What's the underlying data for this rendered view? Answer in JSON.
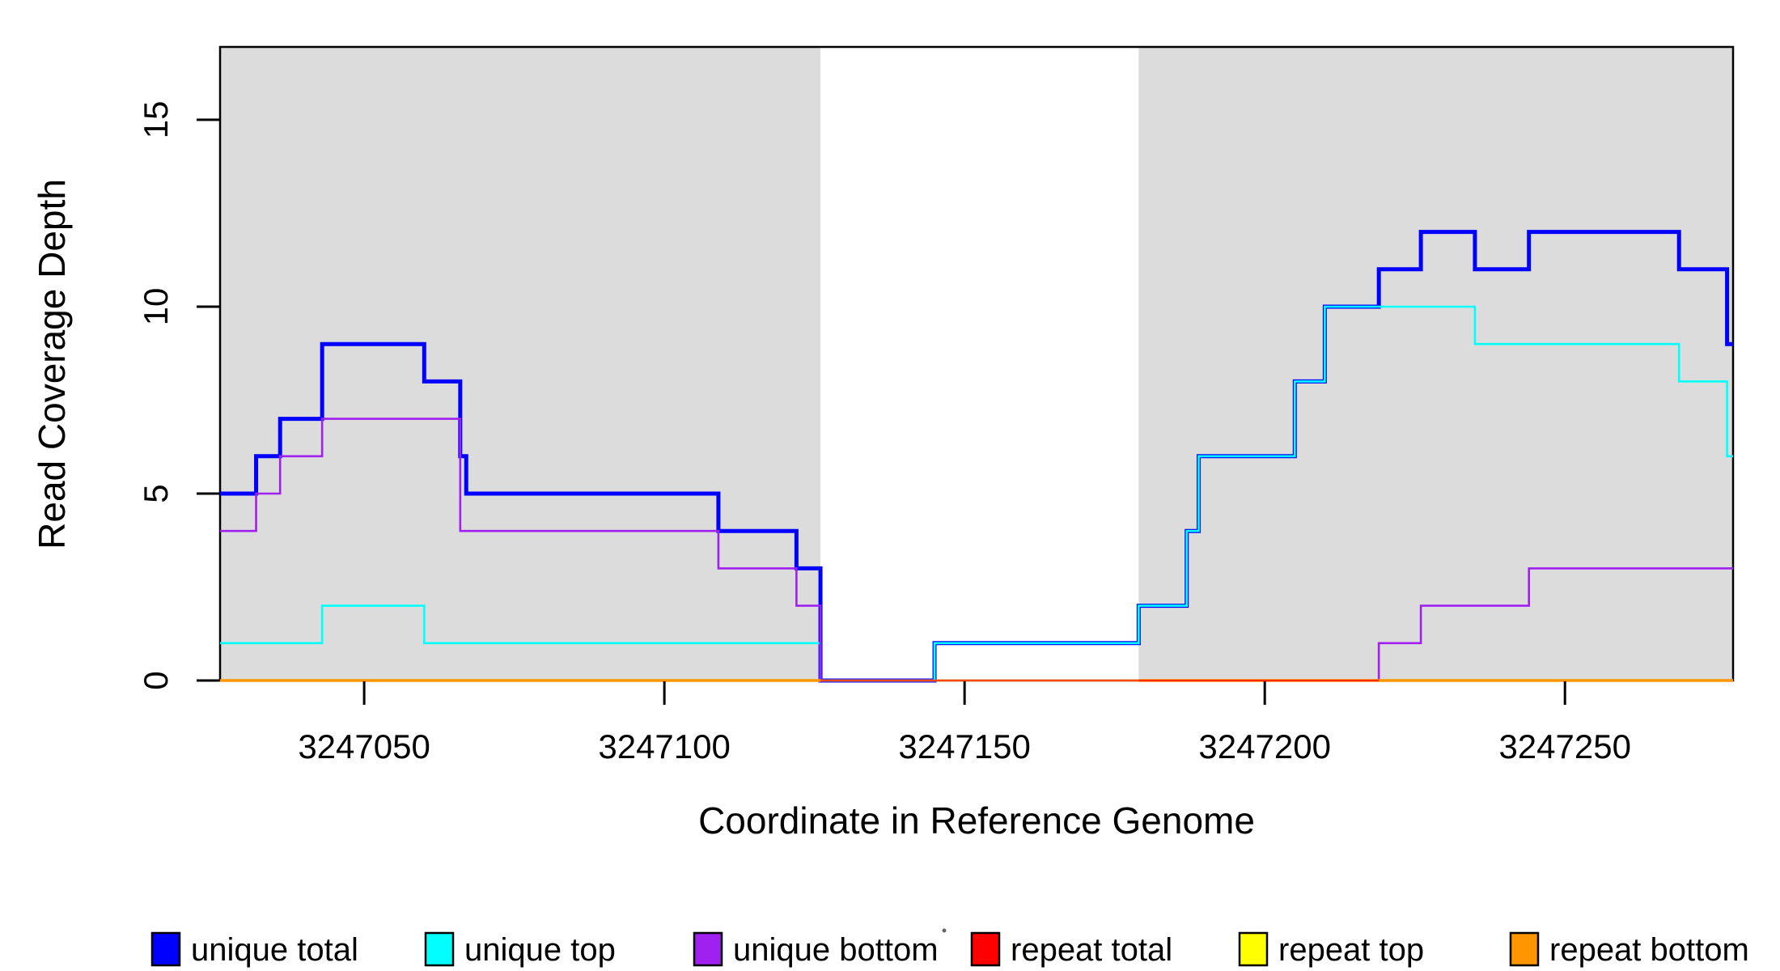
{
  "chart_data": {
    "type": "line",
    "subtype": "step-coverage-plot",
    "title": "",
    "xlabel": "Coordinate in Reference Genome",
    "ylabel": "Read Coverage Depth",
    "x_range": [
      3247026,
      3247278
    ],
    "y_range": [
      0,
      17
    ],
    "x_ticks": [
      3247050,
      3247100,
      3247150,
      3247200,
      3247250
    ],
    "y_ticks": [
      0,
      5,
      10,
      15
    ],
    "grid": false,
    "legend_position": "bottom",
    "shaded_regions": [
      {
        "from": 3247026,
        "to": 3247126,
        "color": "#DCDCDC"
      },
      {
        "from": 3247179,
        "to": 3247278,
        "color": "#DCDCDC"
      }
    ],
    "series": [
      {
        "name": "unique total",
        "color": "#0000FF",
        "line_width": 5,
        "line_opacity": 1,
        "segments": [
          {
            "steps": [
              [
                3247026,
                5
              ],
              [
                3247032,
                6
              ],
              [
                3247036,
                7
              ],
              [
                3247043,
                9
              ],
              [
                3247060,
                8
              ],
              [
                3247066,
                6
              ],
              [
                3247067,
                5
              ],
              [
                3247109,
                4
              ],
              [
                3247122,
                3
              ],
              [
                3247126,
                0
              ],
              [
                3247145,
                1
              ],
              [
                3247179,
                2
              ],
              [
                3247187,
                4
              ],
              [
                3247189,
                6
              ],
              [
                3247205,
                8
              ],
              [
                3247210,
                10
              ],
              [
                3247219,
                11
              ],
              [
                3247226,
                12
              ],
              [
                3247235,
                11
              ],
              [
                3247244,
                12
              ],
              [
                3247269,
                11
              ],
              [
                3247277,
                9
              ]
            ],
            "end": 3247278
          }
        ]
      },
      {
        "name": "unique top",
        "color": "#00FFFF",
        "line_width": 2.6,
        "line_opacity": 1,
        "segments": [
          {
            "steps": [
              [
                3247026,
                1
              ],
              [
                3247043,
                2
              ],
              [
                3247060,
                1
              ],
              [
                3247126,
                0
              ],
              [
                3247145,
                1
              ],
              [
                3247179,
                2
              ],
              [
                3247187,
                4
              ],
              [
                3247189,
                6
              ],
              [
                3247205,
                8
              ],
              [
                3247210,
                10
              ],
              [
                3247235,
                9
              ],
              [
                3247269,
                8
              ],
              [
                3247277,
                6
              ]
            ],
            "end": 3247278
          }
        ]
      },
      {
        "name": "unique bottom",
        "color": "#A020F0",
        "line_width": 2.6,
        "line_opacity": 1,
        "segments": [
          {
            "steps": [
              [
                3247026,
                4
              ],
              [
                3247032,
                5
              ],
              [
                3247036,
                6
              ],
              [
                3247043,
                7
              ],
              [
                3247066,
                4
              ],
              [
                3247109,
                3
              ],
              [
                3247122,
                2
              ],
              [
                3247126,
                0
              ],
              [
                3247219,
                1
              ],
              [
                3247226,
                2
              ],
              [
                3247244,
                3
              ]
            ],
            "end": 3247278
          }
        ]
      },
      {
        "name": "repeat total",
        "color": "#FF0000",
        "line_width": 2.2,
        "line_opacity": 0.72,
        "segments": [
          {
            "steps": [
              [
                3247126,
                0
              ]
            ],
            "end": 3247219
          }
        ]
      },
      {
        "name": "repeat top",
        "color": "#FFFF00",
        "line_width": 2.4,
        "line_opacity": 1,
        "segments": [
          {
            "steps": [
              [
                3247126,
                0
              ]
            ],
            "end": 3247219
          }
        ]
      },
      {
        "name": "repeat bottom",
        "color": "#FF9500",
        "line_width": 3.4,
        "line_opacity": 1,
        "segments": [
          {
            "steps": [
              [
                3247026,
                0
              ]
            ],
            "end": 3247126
          },
          {
            "steps": [
              [
                3247179,
                0
              ]
            ],
            "end": 3247278
          }
        ]
      }
    ],
    "render_order": [
      0,
      1,
      2,
      4,
      5,
      3
    ],
    "legend": [
      {
        "label": "unique total",
        "color": "#0000FF"
      },
      {
        "label": "unique top",
        "color": "#00FFFF"
      },
      {
        "label": "unique bottom",
        "color": "#A020F0"
      },
      {
        "label": "repeat total",
        "color": "#FF0000"
      },
      {
        "label": "repeat top",
        "color": "#FFFF00"
      },
      {
        "label": "repeat bottom",
        "color": "#FF9500"
      }
    ]
  }
}
